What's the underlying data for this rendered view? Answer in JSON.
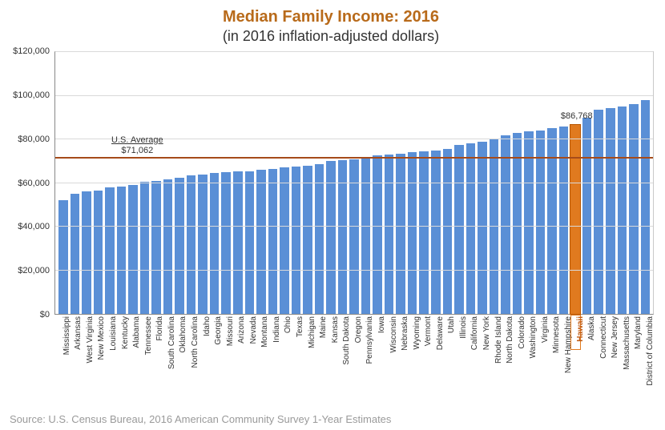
{
  "chart": {
    "type": "bar",
    "title": "Median Family Income: 2016",
    "subtitle": "(in 2016 inflation-adjusted dollars)",
    "title_color": "#b86a1a",
    "title_fontsize": 20,
    "subtitle_color": "#333333",
    "subtitle_fontsize": 18,
    "background_color": "#ffffff",
    "bar_color": "#5a8fd6",
    "highlight_color": "#e07a1f",
    "avg_line_color": "#a64b1a",
    "grid_color": "#d9d9d9",
    "axis_color": "#888888",
    "ylim": [
      0,
      120000
    ],
    "ytick_step": 20000,
    "yticks": [
      "$0",
      "$20,000",
      "$40,000",
      "$60,000",
      "$80,000",
      "$100,000",
      "$120,000"
    ],
    "average": {
      "label_line1": "U.S. Average",
      "label_line2": "$71,062",
      "value": 71062
    },
    "highlight": {
      "state": "Hawaii",
      "value": 86768,
      "label": "$86,768"
    },
    "states": [
      {
        "name": "Mississippi",
        "value": 52000
      },
      {
        "name": "Arkansas",
        "value": 55000
      },
      {
        "name": "West Virginia",
        "value": 56000
      },
      {
        "name": "New Mexico",
        "value": 56500
      },
      {
        "name": "Louisiana",
        "value": 58000
      },
      {
        "name": "Kentucky",
        "value": 58500
      },
      {
        "name": "Alabama",
        "value": 59000
      },
      {
        "name": "Tennessee",
        "value": 60500
      },
      {
        "name": "Florida",
        "value": 61000
      },
      {
        "name": "South Carolina",
        "value": 61500
      },
      {
        "name": "Oklahoma",
        "value": 62500
      },
      {
        "name": "North Carolina",
        "value": 63500
      },
      {
        "name": "Idaho",
        "value": 64000
      },
      {
        "name": "Georgia",
        "value": 64500
      },
      {
        "name": "Missouri",
        "value": 65000
      },
      {
        "name": "Arizona",
        "value": 65500
      },
      {
        "name": "Nevada",
        "value": 65500
      },
      {
        "name": "Montana",
        "value": 66000
      },
      {
        "name": "Indiana",
        "value": 66500
      },
      {
        "name": "Ohio",
        "value": 67000
      },
      {
        "name": "Texas",
        "value": 67500
      },
      {
        "name": "Michigan",
        "value": 68000
      },
      {
        "name": "Maine",
        "value": 68500
      },
      {
        "name": "Kansas",
        "value": 70000
      },
      {
        "name": "South Dakota",
        "value": 70500
      },
      {
        "name": "Oregon",
        "value": 71000
      },
      {
        "name": "Pennsylvania",
        "value": 71500
      },
      {
        "name": "Iowa",
        "value": 72500
      },
      {
        "name": "Wisconsin",
        "value": 73000
      },
      {
        "name": "Nebraska",
        "value": 73500
      },
      {
        "name": "Wyoming",
        "value": 74000
      },
      {
        "name": "Vermont",
        "value": 74500
      },
      {
        "name": "Delaware",
        "value": 75000
      },
      {
        "name": "Utah",
        "value": 75500
      },
      {
        "name": "Illinois",
        "value": 77500
      },
      {
        "name": "California",
        "value": 78000
      },
      {
        "name": "New York",
        "value": 79000
      },
      {
        "name": "Rhode Island",
        "value": 80500
      },
      {
        "name": "North Dakota",
        "value": 82000
      },
      {
        "name": "Colorado",
        "value": 83000
      },
      {
        "name": "Washington",
        "value": 83500
      },
      {
        "name": "Virginia",
        "value": 84000
      },
      {
        "name": "Minnesota",
        "value": 85000
      },
      {
        "name": "New Hampshire",
        "value": 86000
      },
      {
        "name": "Hawaii",
        "value": 86768
      },
      {
        "name": "Alaska",
        "value": 90000
      },
      {
        "name": "Connecticut",
        "value": 93500
      },
      {
        "name": "New Jersey",
        "value": 94500
      },
      {
        "name": "Massachusetts",
        "value": 95000
      },
      {
        "name": "Maryland",
        "value": 96000
      },
      {
        "name": "District of Columbia",
        "value": 98000
      }
    ],
    "source": "Source: U.S. Census Bureau, 2016 American Community Survey 1-Year Estimates",
    "source_color": "#9a9a9a",
    "label_fontsize": 10
  }
}
